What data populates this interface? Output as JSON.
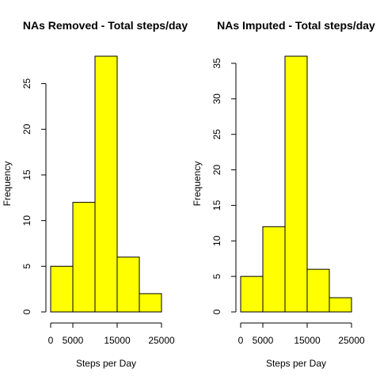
{
  "colors": {
    "bar_fill": "#ffff00",
    "bar_stroke": "#000000",
    "axis": "#000000",
    "background": "#ffffff"
  },
  "chart_data": [
    {
      "type": "bar",
      "title": "NAs Removed - Total steps/day",
      "xlabel": "Steps per Day",
      "ylabel": "Frequency",
      "bins": [
        [
          0,
          5000
        ],
        [
          5000,
          10000
        ],
        [
          10000,
          15000
        ],
        [
          15000,
          20000
        ],
        [
          20000,
          25000
        ]
      ],
      "values": [
        5,
        12,
        28,
        6,
        2
      ],
      "xlim": [
        0,
        25000
      ],
      "ylim": [
        0,
        28
      ],
      "x_ticks": [
        0,
        5000,
        15000,
        25000
      ],
      "x_tick_labels": [
        "0",
        "5000",
        "15000",
        "25000"
      ],
      "y_ticks": [
        0,
        5,
        10,
        15,
        20,
        25
      ],
      "y_tick_labels": [
        "0",
        "5",
        "10",
        "15",
        "20",
        "25"
      ],
      "grid": false,
      "legend": "none"
    },
    {
      "type": "bar",
      "title": "NAs Imputed - Total steps/day",
      "xlabel": "Steps per Day",
      "ylabel": "Frequency",
      "bins": [
        [
          0,
          5000
        ],
        [
          5000,
          10000
        ],
        [
          10000,
          15000
        ],
        [
          15000,
          20000
        ],
        [
          20000,
          25000
        ]
      ],
      "values": [
        5,
        12,
        36,
        6,
        2
      ],
      "xlim": [
        0,
        25000
      ],
      "ylim": [
        0,
        36
      ],
      "x_ticks": [
        0,
        5000,
        15000,
        25000
      ],
      "x_tick_labels": [
        "0",
        "5000",
        "15000",
        "25000"
      ],
      "y_ticks": [
        0,
        5,
        10,
        15,
        20,
        25,
        30,
        35
      ],
      "y_tick_labels": [
        "0",
        "5",
        "10",
        "15",
        "20",
        "25",
        "30",
        "35"
      ],
      "grid": false,
      "legend": "none"
    }
  ]
}
